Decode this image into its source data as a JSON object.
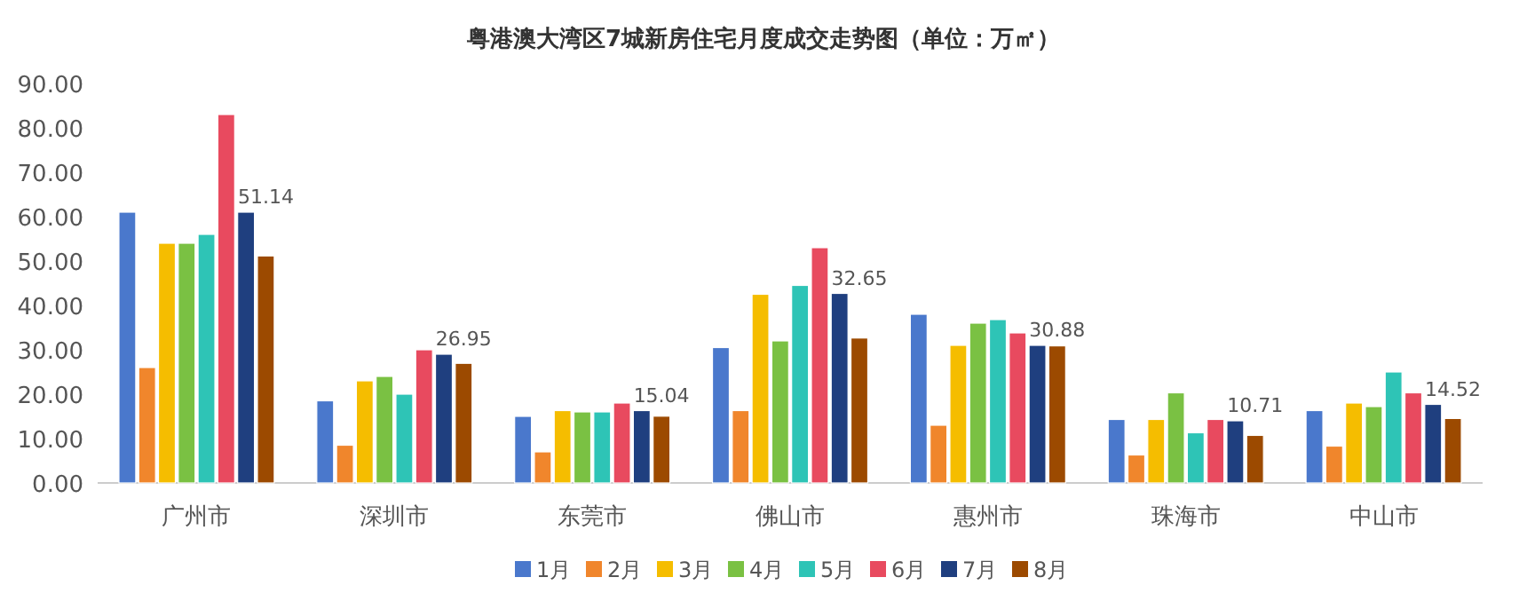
{
  "chart_data": {
    "type": "bar",
    "title": "粤港澳大湾区7城新房住宅月度成交走势图（单位：万㎡）",
    "categories": [
      "广州市",
      "深圳市",
      "东莞市",
      "佛山市",
      "惠州市",
      "珠海市",
      "中山市"
    ],
    "series": [
      {
        "name": "1月",
        "color": "#4a78cc",
        "values": [
          61,
          18.5,
          15,
          30.5,
          38,
          14.3,
          16.3
        ]
      },
      {
        "name": "2月",
        "color": "#f0862c",
        "values": [
          26,
          8.5,
          7,
          16.3,
          13,
          6.3,
          8.3
        ]
      },
      {
        "name": "3月",
        "color": "#f5bd00",
        "values": [
          54,
          23,
          16.3,
          42.5,
          31,
          14.3,
          18
        ]
      },
      {
        "name": "4月",
        "color": "#7ac143",
        "values": [
          54,
          24,
          16,
          32,
          36,
          20.3,
          17.2
        ]
      },
      {
        "name": "5月",
        "color": "#2ec4b6",
        "values": [
          56,
          20,
          16,
          44.5,
          36.8,
          11.3,
          25
        ]
      },
      {
        "name": "6月",
        "color": "#e84a5f",
        "values": [
          83,
          30,
          18,
          53,
          33.8,
          14.3,
          20.3
        ]
      },
      {
        "name": "7月",
        "color": "#1f3f7f",
        "values": [
          61,
          29,
          16.3,
          42.7,
          31,
          14,
          17.7
        ]
      },
      {
        "name": "8月",
        "color": "#9c4a00",
        "values": [
          51.14,
          26.95,
          15.04,
          32.65,
          30.88,
          10.71,
          14.52
        ],
        "value_labels": [
          "51.14",
          "26.95",
          "15.04",
          "32.65",
          "30.88",
          "10.71",
          "14.52"
        ]
      }
    ],
    "ylim": [
      0,
      90
    ],
    "yticks": [
      {
        "value": 0,
        "label": "0.00"
      },
      {
        "value": 10,
        "label": "10.00"
      },
      {
        "value": 20,
        "label": "20.00"
      },
      {
        "value": 30,
        "label": "30.00"
      },
      {
        "value": 40,
        "label": "40.00"
      },
      {
        "value": 50,
        "label": "50.00"
      },
      {
        "value": 60,
        "label": "60.00"
      },
      {
        "value": 70,
        "label": "70.00"
      },
      {
        "value": 80,
        "label": "80.00"
      },
      {
        "value": 90,
        "label": "90.00"
      }
    ],
    "grid": false,
    "legend": "bottom"
  }
}
